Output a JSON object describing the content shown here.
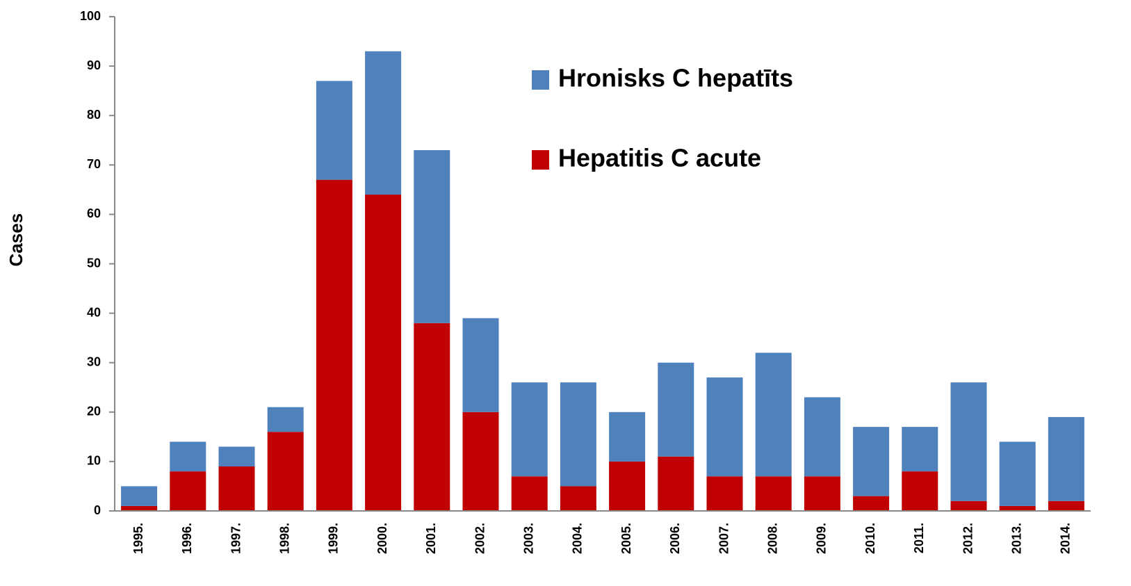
{
  "chart_data": {
    "type": "stacked_bar",
    "y_label": "Cases",
    "categories": [
      "1995.",
      "1996.",
      "1997.",
      "1998.",
      "1999.",
      "2000.",
      "2001.",
      "2002.",
      "2003.",
      "2004.",
      "2005.",
      "2006.",
      "2007.",
      "2008.",
      "2009.",
      "2010.",
      "2011.",
      "2012.",
      "2013.",
      "2014."
    ],
    "series": [
      {
        "name": "Hronisks C  hepatīts",
        "color": "#4f81bd",
        "values": [
          4,
          6,
          4,
          5,
          20,
          29,
          35,
          19,
          19,
          21,
          10,
          19,
          20,
          25,
          16,
          14,
          9,
          24,
          13,
          17
        ]
      },
      {
        "name": "Hepatitis C acute",
        "color": "#c00000",
        "values": [
          1,
          8,
          9,
          16,
          67,
          64,
          38,
          20,
          7,
          5,
          10,
          11,
          7,
          7,
          7,
          3,
          8,
          2,
          1,
          2
        ]
      }
    ],
    "ylim": [
      0,
      100
    ],
    "yticks": [
      0,
      10,
      20,
      30,
      40,
      50,
      60,
      70,
      80,
      90,
      100
    ]
  }
}
